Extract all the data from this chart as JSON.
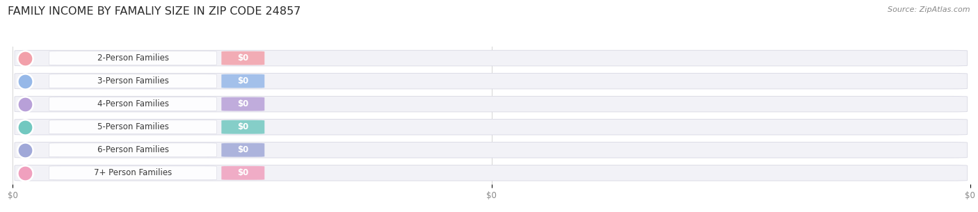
{
  "title": "FAMILY INCOME BY FAMALIY SIZE IN ZIP CODE 24857",
  "source_text": "Source: ZipAtlas.com",
  "categories": [
    "2-Person Families",
    "3-Person Families",
    "4-Person Families",
    "5-Person Families",
    "6-Person Families",
    "7+ Person Families"
  ],
  "bar_colors": [
    "#f2a0aa",
    "#96b8e8",
    "#b8a0d8",
    "#72c8c0",
    "#a0a8d8",
    "#f0a0be"
  ],
  "bg_color": "#ffffff",
  "bar_bg_color": "#f2f2f7",
  "bar_bg_border_color": "#dcdce6",
  "title_fontsize": 11.5,
  "label_fontsize": 8.5,
  "source_fontsize": 8.0,
  "x_tick_positions": [
    0.0,
    0.5,
    1.0
  ],
  "x_tick_labels": [
    "$0",
    "$0",
    "$0"
  ]
}
